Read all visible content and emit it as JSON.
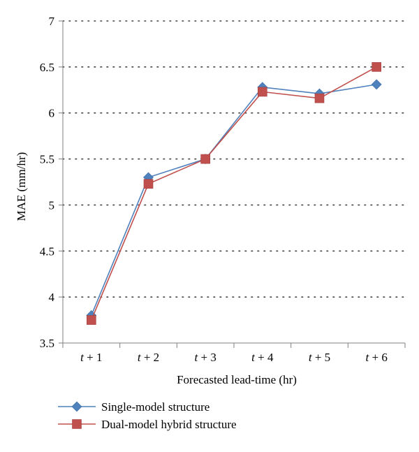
{
  "chart_data": {
    "type": "line",
    "title": "",
    "xlabel": "Forecasted lead-time (hr)",
    "ylabel": "MAE (mm/hr)",
    "categories": [
      "t + 1",
      "t + 2",
      "t + 3",
      "t + 4",
      "t + 5",
      "t + 6"
    ],
    "category_parts": [
      {
        "var": "t",
        "rest": " + 1"
      },
      {
        "var": "t",
        "rest": " + 2"
      },
      {
        "var": "t",
        "rest": " + 3"
      },
      {
        "var": "t",
        "rest": " + 4"
      },
      {
        "var": "t",
        "rest": " + 5"
      },
      {
        "var": "t",
        "rest": " + 6"
      }
    ],
    "ylim": [
      3.5,
      7
    ],
    "yticks": [
      3.5,
      4,
      4.5,
      5,
      5.5,
      6,
      6.5,
      7
    ],
    "ytick_labels": [
      "3.5",
      "4",
      "4.5",
      "5",
      "5.5",
      "6",
      "6.5",
      "7"
    ],
    "grid": "horizontal dotted",
    "legend_position": "bottom-left",
    "series": [
      {
        "name": "Single-model structure",
        "marker": "diamond",
        "color": "#4F81BD",
        "values": [
          3.8,
          5.3,
          5.5,
          6.28,
          6.21,
          6.31
        ]
      },
      {
        "name": "Dual-model hybrid structure",
        "marker": "square",
        "color": "#C0504D",
        "values": [
          3.75,
          5.23,
          5.5,
          6.23,
          6.16,
          6.5
        ]
      }
    ]
  }
}
